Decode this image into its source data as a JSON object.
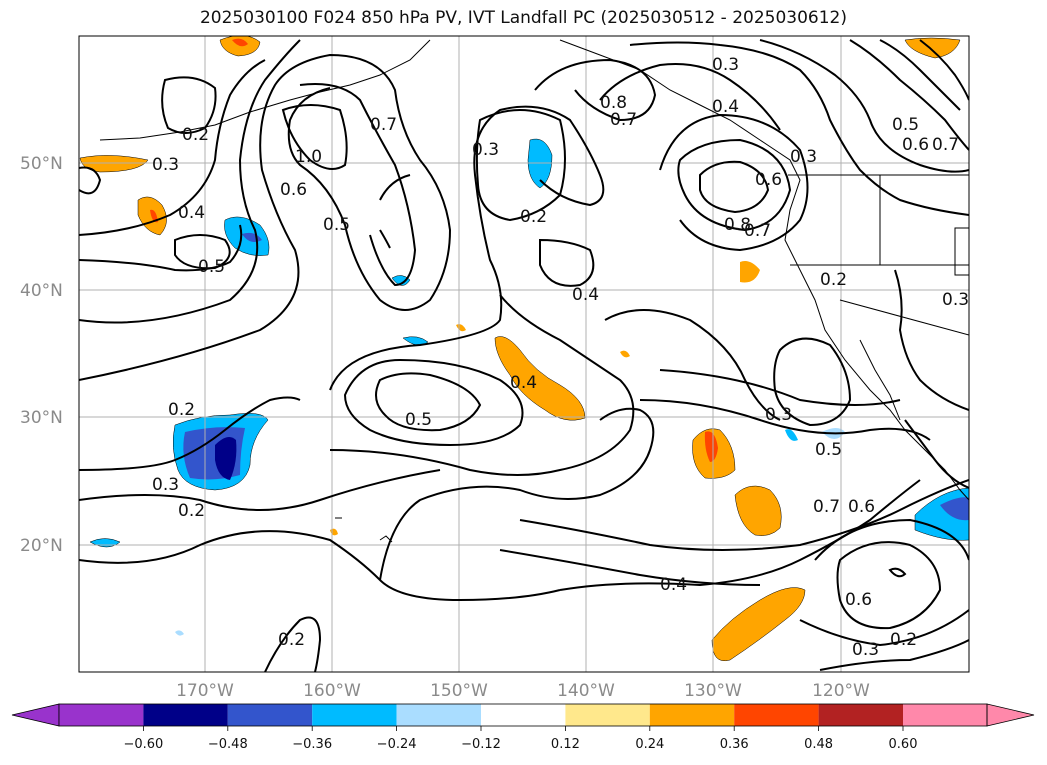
{
  "title": "2025030100 F024 850 hPa PV, IVT Landfall PC (2025030512 - 2025030612)",
  "map": {
    "lat_labels": [
      "50°N",
      "40°N",
      "30°N",
      "20°N"
    ],
    "lon_labels": [
      "170°W",
      "160°W",
      "150°W",
      "140°W",
      "130°W",
      "120°W"
    ],
    "contour_labels": [
      "0.2",
      "0.3",
      "0.4",
      "0.5",
      "1.0",
      "0.6",
      "0.5",
      "0.7",
      "0.3",
      "0.2",
      "0.8",
      "0.7",
      "0.3",
      "0.4",
      "0.3",
      "0.6",
      "0.8",
      "0.7",
      "0.5",
      "0.6",
      "0.7",
      "0.4",
      "0.3",
      "0.2",
      "0.4",
      "0.5",
      "0.2",
      "0.3",
      "0.2",
      "0.3",
      "0.5",
      "0.7",
      "0.6",
      "0.4",
      "0.6",
      "0.3",
      "0.2",
      "0.2"
    ],
    "colors": {
      "ocean_background": "#ffffff",
      "contour_line": "#000000",
      "grid": "#b0b0b0"
    }
  },
  "colorbar": {
    "ticks": [
      "−0.60",
      "−0.48",
      "−0.36",
      "−0.24",
      "−0.12",
      "0.12",
      "0.24",
      "0.36",
      "0.48",
      "0.60"
    ],
    "bins": [
      "#9933cc",
      "#000088",
      "#3355cc",
      "#00bbff",
      "#aaddff",
      "#ffffff",
      "#ffe88c",
      "#ffa500",
      "#ff4500",
      "#b22222",
      "#ff88aa"
    ]
  }
}
